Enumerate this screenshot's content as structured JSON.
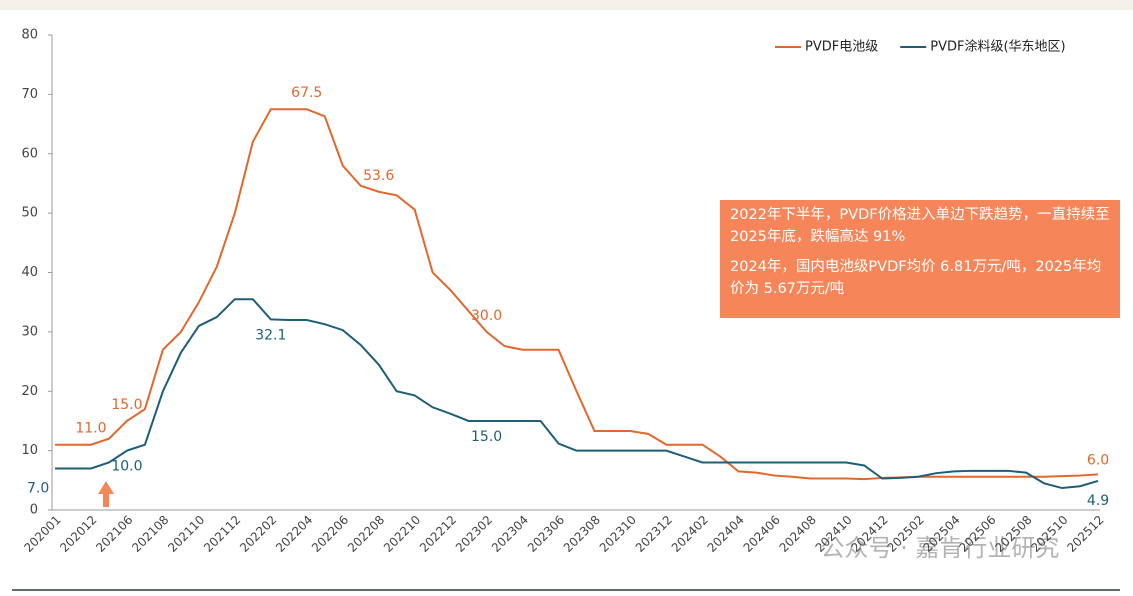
{
  "chart_data": {
    "type": "line",
    "categories": [
      "202001",
      null,
      "202012",
      null,
      "202106",
      null,
      "202108",
      null,
      "202110",
      null,
      "202112",
      null,
      "202202",
      null,
      "202204",
      null,
      "202206",
      null,
      "202208",
      null,
      "202210",
      null,
      "202212",
      null,
      "202302",
      null,
      "202304",
      null,
      "202306",
      null,
      "202308",
      null,
      "202310",
      null,
      "202312",
      null,
      "202402",
      null,
      "202404",
      null,
      "202406",
      null,
      "202408",
      null,
      "202410",
      null,
      "202412",
      null,
      "202502",
      null,
      "202504",
      null,
      "202506",
      null,
      "202508",
      null,
      "202510",
      null,
      "202512"
    ],
    "series": [
      {
        "name": "PVDF电池级",
        "color": "#E2672C",
        "values": [
          11,
          11,
          11,
          12,
          15,
          17,
          27,
          30,
          35,
          41,
          50,
          62,
          67.5,
          67.5,
          67.5,
          66.3,
          58,
          54.6,
          53.6,
          53,
          50.6,
          40,
          37,
          33.5,
          30,
          27.6,
          27,
          27,
          27,
          20,
          13.3,
          13.3,
          13.3,
          12.8,
          11,
          11,
          11,
          9,
          6.5,
          6.3,
          5.8,
          5.6,
          5.3,
          5.3,
          5.3,
          5.2,
          5.4,
          5.5,
          5.6,
          5.6,
          5.6,
          5.6,
          5.6,
          5.6,
          5.6,
          5.6,
          5.7,
          5.8,
          6
        ],
        "value_labels": [
          null,
          null,
          "11.0",
          null,
          "15.0",
          null,
          null,
          null,
          null,
          null,
          null,
          null,
          null,
          null,
          "67.5",
          null,
          null,
          null,
          "53.6",
          null,
          null,
          null,
          null,
          null,
          "30.0",
          null,
          null,
          null,
          null,
          null,
          null,
          null,
          null,
          null,
          null,
          null,
          null,
          null,
          null,
          null,
          null,
          null,
          null,
          null,
          null,
          null,
          null,
          null,
          null,
          null,
          null,
          null,
          null,
          null,
          null,
          null,
          null,
          null,
          "6.0"
        ]
      },
      {
        "name": "PVDF涂料级(华东地区)",
        "color": "#1D5E79",
        "values": [
          7,
          7,
          7,
          8,
          10,
          11,
          20,
          26.5,
          31,
          32.5,
          35.5,
          35.5,
          32.1,
          32,
          32,
          31.3,
          30.3,
          27.8,
          24.5,
          20,
          19.3,
          17.3,
          16.2,
          15,
          15,
          15,
          15,
          15,
          11.2,
          10,
          10,
          10,
          10,
          10,
          10,
          9,
          8,
          8,
          8,
          8,
          8,
          8,
          8,
          8,
          8,
          7.5,
          5.3,
          5.4,
          5.6,
          6.2,
          6.5,
          6.6,
          6.6,
          6.6,
          6.3,
          4.5,
          3.7,
          4,
          4.9
        ],
        "value_labels": [
          "7.0",
          null,
          null,
          null,
          "10.0",
          null,
          null,
          null,
          null,
          null,
          null,
          null,
          "32.1",
          null,
          null,
          null,
          null,
          null,
          null,
          null,
          null,
          null,
          null,
          null,
          "15.0",
          null,
          null,
          null,
          null,
          null,
          null,
          null,
          null,
          null,
          null,
          null,
          null,
          null,
          null,
          null,
          null,
          null,
          null,
          null,
          null,
          null,
          null,
          null,
          null,
          null,
          null,
          null,
          null,
          null,
          null,
          null,
          null,
          null,
          "4.9"
        ]
      }
    ],
    "ylim": [
      0,
      80
    ],
    "yticks": [
      0,
      10,
      20,
      30,
      40,
      50,
      60,
      70,
      80
    ],
    "legend": "top-right",
    "annotations": [
      "2022年下半年，PVDF价格进入单边下跌趋势，一直持续至2025年底，跌幅高达 91%",
      "2024年，国内电池级PVDF均价 6.81万元/吨，2025年均价为 5.67万元/吨"
    ],
    "watermark": "公众号 · 嘉肯行业研究"
  }
}
